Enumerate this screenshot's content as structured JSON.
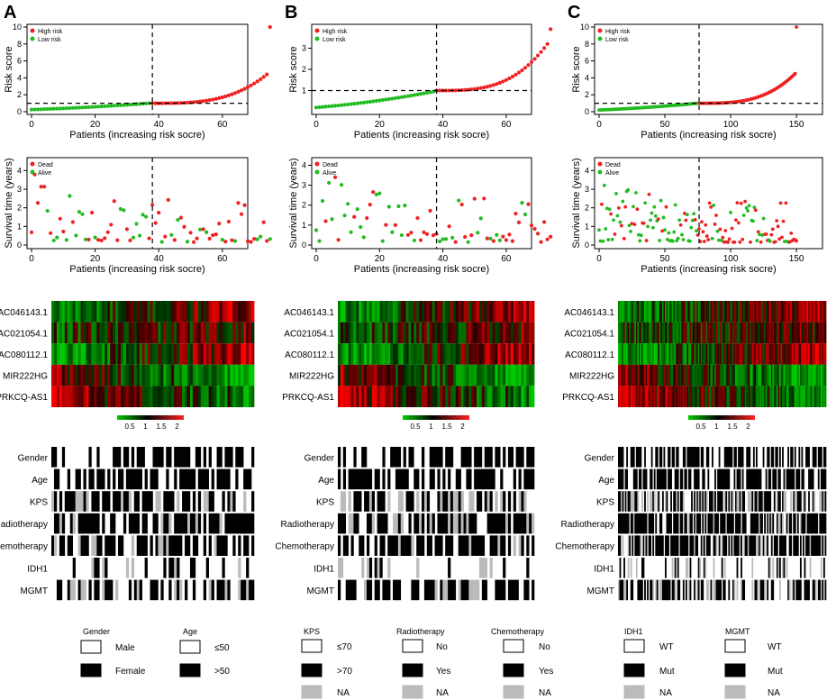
{
  "panel_letters": [
    "A",
    "B",
    "C"
  ],
  "colors": {
    "high": "#ee2222",
    "low": "#22bb22",
    "dead": "#ee2222",
    "alive": "#22bb22",
    "heat_low": "#00cc00",
    "heat_mid": "#000000",
    "heat_high": "#ff2222",
    "cat_black": "#000000",
    "cat_white": "#ffffff",
    "cat_na": "#bbbbbb"
  },
  "risk_plot": {
    "xlabel": "Patients (increasing risk socre)",
    "ylabel": "Risk score",
    "legend": [
      "High risk",
      "Low risk"
    ]
  },
  "survival_plot": {
    "xlabel": "Patients (increasing risk socre)",
    "ylabel": "Survival time (years)",
    "legend": [
      "Dead",
      "Alive"
    ]
  },
  "genes": [
    "AC046143.1",
    "AC021054.1",
    "AC080112.1",
    "MIR222HG",
    "PRKCQ-AS1"
  ],
  "heat_scale_ticks": [
    "0.5",
    "1",
    "1.5",
    "2"
  ],
  "clinical_rows": [
    "Gender",
    "Age",
    "KPS",
    "Radiotherapy",
    "Chemotherapy",
    "IDH1",
    "MGMT"
  ],
  "clinical_rows_a": [
    "Gender",
    "Age",
    "KPS",
    "Radiotherapy",
    "hemotherapy",
    "IDH1",
    "MGMT"
  ],
  "legend_groups": [
    {
      "title": "Gender",
      "items": [
        "Male",
        "Female"
      ]
    },
    {
      "title": "Age",
      "items": [
        "≤50",
        ">50"
      ]
    },
    {
      "title": "KPS",
      "items": [
        "≤70",
        ">70",
        "NA"
      ]
    },
    {
      "title": "Radiotherapy",
      "items": [
        "No",
        "Yes",
        "NA"
      ]
    },
    {
      "title": "Chemotherapy",
      "items": [
        "No",
        "Yes",
        "NA"
      ]
    },
    {
      "title": "IDH1",
      "items": [
        "WT",
        "Mut",
        "NA"
      ]
    },
    {
      "title": "MGMT",
      "items": [
        "WT",
        "Mut",
        "NA"
      ]
    }
  ],
  "chart_data": [
    {
      "type": "scatter",
      "panel": "A",
      "title": "",
      "xlabel": "Patients (increasing risk socre)",
      "ylabel": "Risk score",
      "n": 76,
      "cutoff_index": 38,
      "threshold": 1.0,
      "ylim": [
        0,
        10
      ],
      "yticks": [
        0,
        2,
        4,
        6,
        8,
        10
      ],
      "xticks": [
        0,
        20,
        40,
        60
      ],
      "risk_score_curve": {
        "n_low": 38,
        "low_start": 0.25,
        "low_end": 1.0,
        "high_end": 4.4,
        "top_outlier": 10.0
      },
      "survival": {
        "ylim": [
          0,
          4.5
        ],
        "yticks": [
          0,
          1,
          2,
          3,
          4
        ],
        "xticks": [
          0,
          20,
          40,
          60
        ]
      },
      "legend": [
        "High risk",
        "Low risk"
      ]
    },
    {
      "type": "scatter",
      "panel": "B",
      "title": "",
      "xlabel": "Patients (increasing risk socre)",
      "ylabel": "Risk score",
      "n": 75,
      "cutoff_index": 38,
      "threshold": 1.0,
      "ylim": [
        0,
        4
      ],
      "yticks": [
        1,
        2,
        3
      ],
      "xticks": [
        0,
        20,
        40,
        60
      ],
      "risk_score_curve": {
        "n_low": 38,
        "low_start": 0.2,
        "low_end": 0.95,
        "high_end": 3.2,
        "top_outlier": 3.9
      },
      "survival": {
        "ylim": [
          0,
          4.2
        ],
        "yticks": [
          0,
          1,
          2,
          3,
          4
        ],
        "xticks": [
          0,
          20,
          40,
          60
        ]
      },
      "legend": [
        "High risk",
        "Low risk"
      ]
    },
    {
      "type": "scatter",
      "panel": "C",
      "title": "",
      "xlabel": "Patients (increasing risk socre)",
      "ylabel": "Risk score",
      "n": 151,
      "cutoff_index": 76,
      "threshold": 1.0,
      "ylim": [
        0,
        10
      ],
      "yticks": [
        0,
        2,
        4,
        6,
        8,
        10
      ],
      "xticks": [
        0,
        50,
        100,
        150
      ],
      "risk_score_curve": {
        "n_low": 76,
        "low_start": 0.2,
        "low_end": 1.0,
        "high_end": 4.5,
        "top_outlier": 10.0
      },
      "survival": {
        "ylim": [
          0,
          4.5
        ],
        "yticks": [
          0,
          1,
          2,
          3,
          4
        ],
        "xticks": [
          0,
          50,
          100,
          150
        ]
      },
      "legend": [
        "High risk",
        "Low risk"
      ]
    }
  ]
}
